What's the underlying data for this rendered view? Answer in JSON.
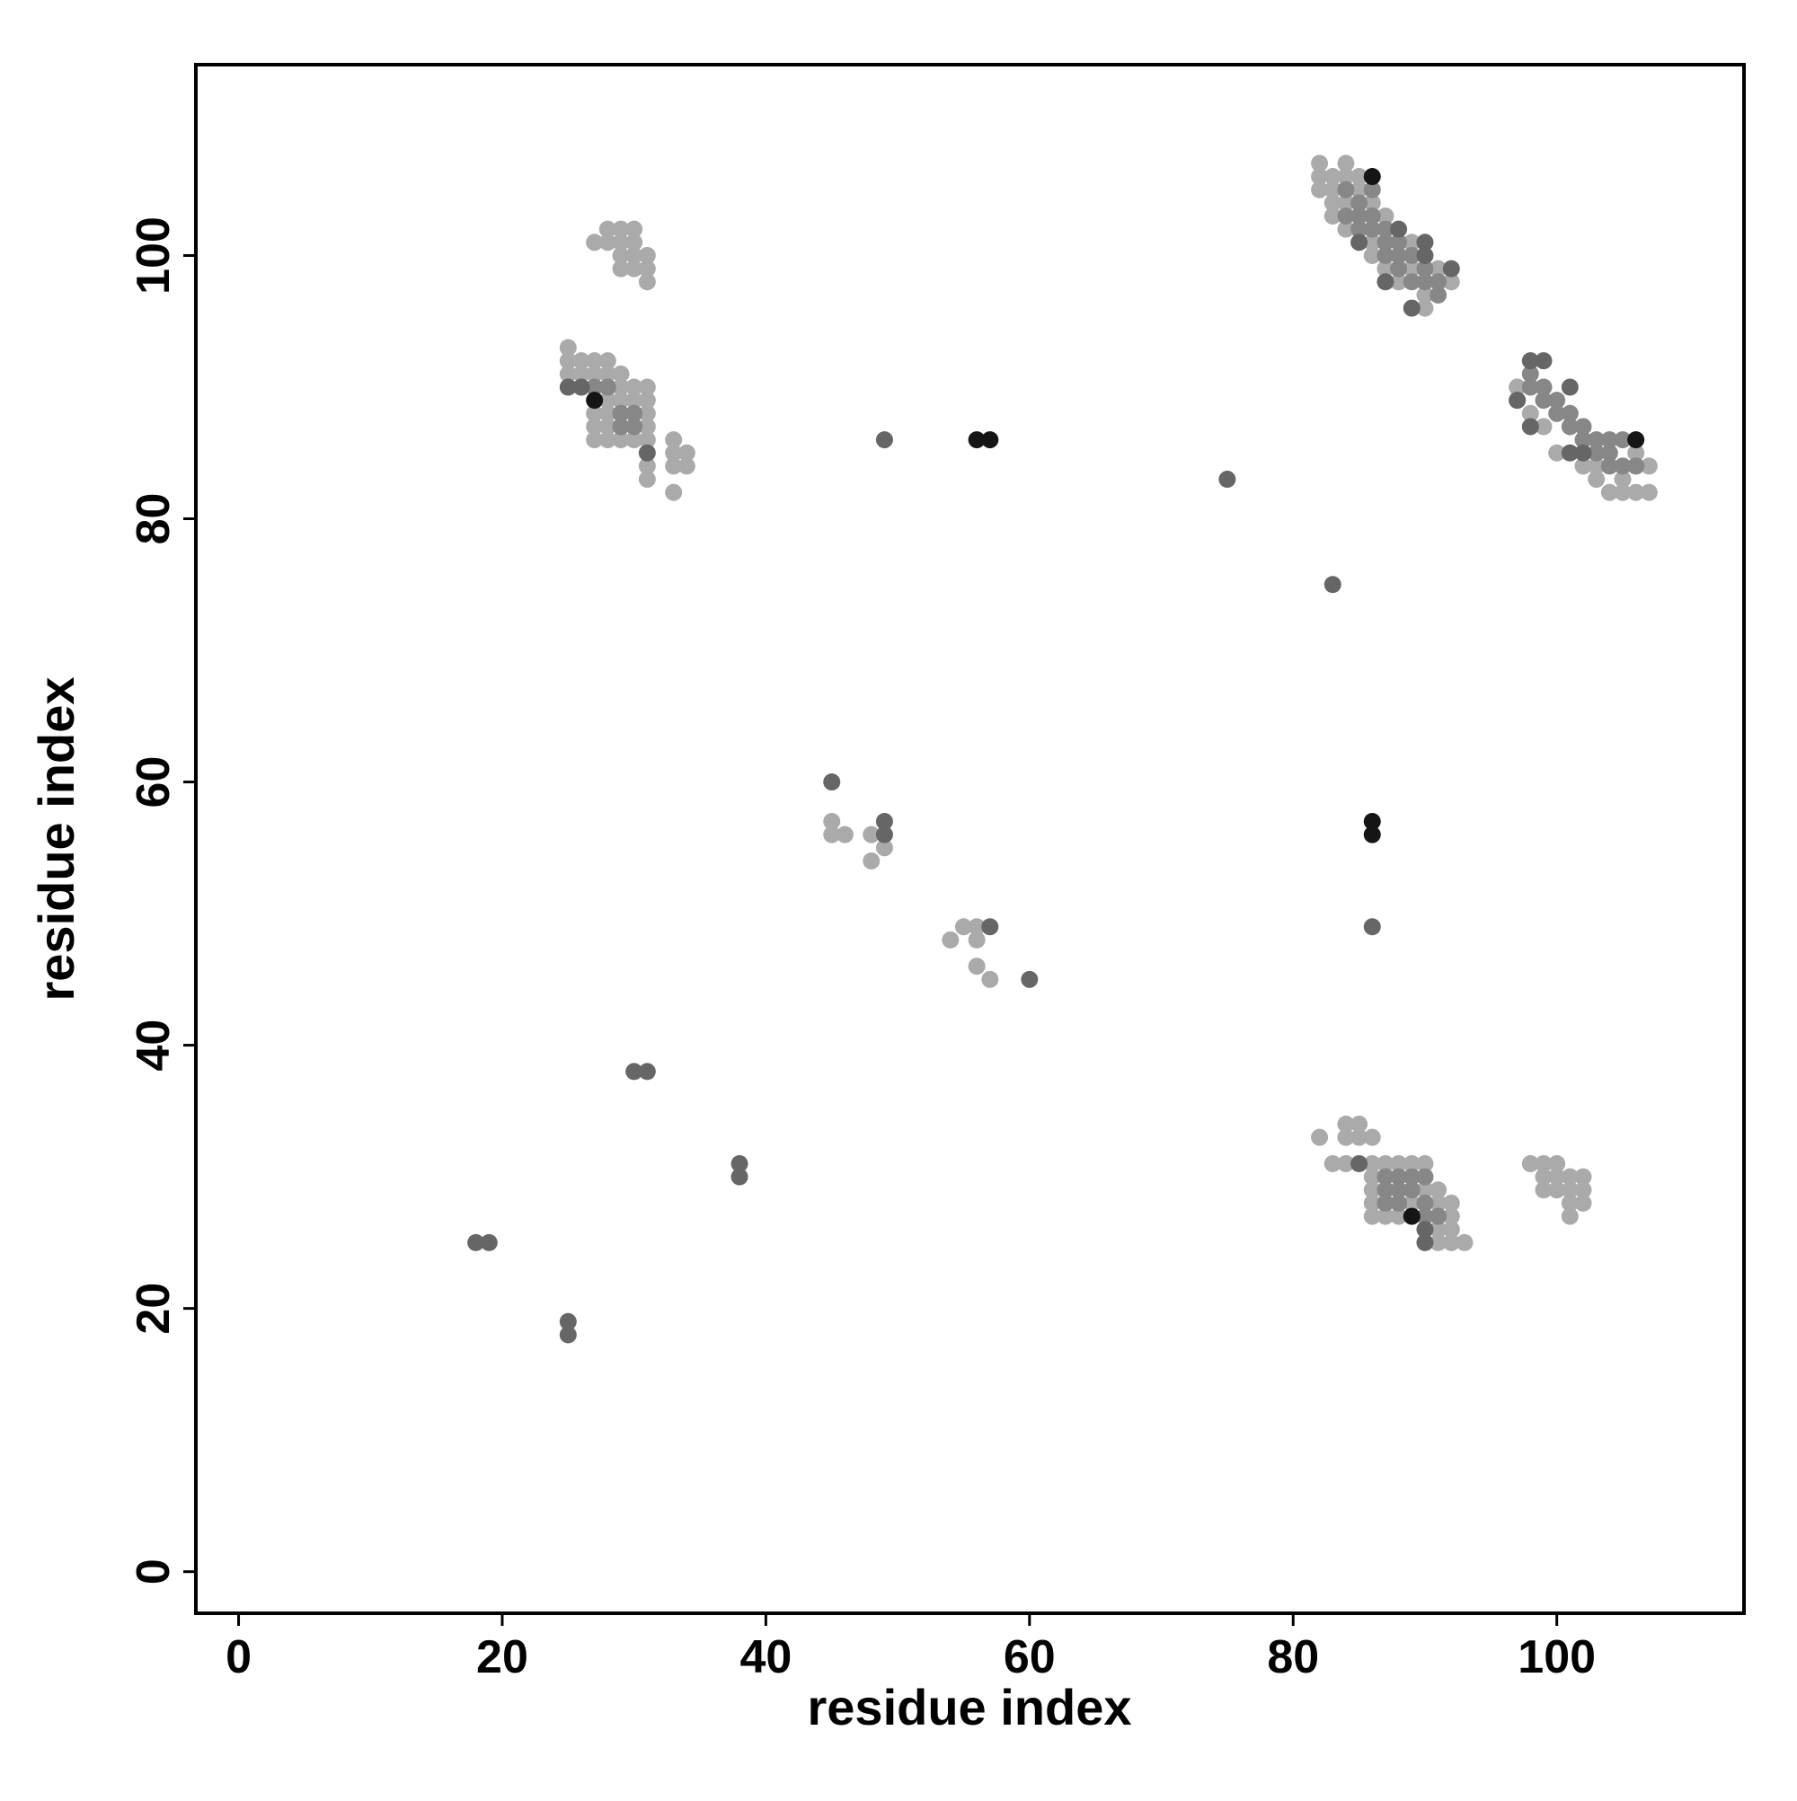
{
  "chart_data": {
    "type": "scatter",
    "xlabel": "residue index",
    "ylabel": "residue index",
    "xlim": [
      -3.24,
      114.2
    ],
    "ylim": [
      -3.16,
      114.5
    ],
    "xticks": [
      0,
      20,
      40,
      60,
      80,
      100
    ],
    "yticks": [
      0,
      20,
      40,
      60,
      80,
      100
    ],
    "series": [
      {
        "color": "#aaaaaa",
        "x": [
          45,
          45,
          46,
          48,
          48,
          49,
          54,
          55,
          56,
          56,
          56,
          57,
          27,
          28,
          28,
          29,
          29,
          30,
          30,
          29,
          30,
          31,
          29,
          30,
          31,
          31,
          25,
          25,
          25,
          26,
          27,
          28,
          26,
          27,
          28,
          29,
          29,
          30,
          31,
          27,
          27,
          27,
          28,
          29,
          30,
          31,
          28,
          31,
          31,
          31,
          28,
          29,
          30,
          28,
          33,
          33,
          34,
          33,
          34,
          31,
          31,
          33,
          82,
          82,
          82,
          83,
          83,
          83,
          83,
          84,
          84,
          84,
          84,
          85,
          85,
          86,
          86,
          86,
          87,
          87,
          88,
          89,
          89,
          90,
          90,
          91,
          92,
          97,
          98,
          99,
          100,
          102,
          103,
          104,
          105,
          106,
          107,
          107,
          105,
          106,
          103,
          82,
          84,
          84,
          85,
          85,
          86,
          83,
          84,
          86,
          86,
          86,
          86,
          86,
          87,
          88,
          89,
          90,
          91,
          91,
          92,
          92,
          92,
          92,
          93,
          91,
          91,
          90,
          89,
          88,
          87,
          98,
          99,
          100,
          99,
          100,
          101,
          102,
          99,
          100,
          101,
          102,
          101,
          102,
          101
        ],
        "values": [
          57,
          56,
          56,
          56,
          54,
          55,
          48,
          49,
          49,
          48,
          46,
          45,
          101,
          102,
          101,
          102,
          101,
          102,
          101,
          100,
          100,
          100,
          99,
          99,
          99,
          98,
          93,
          92,
          91,
          92,
          92,
          92,
          91,
          91,
          91,
          91,
          90,
          90,
          90,
          88,
          87,
          86,
          86,
          86,
          86,
          86,
          87,
          87,
          88,
          89,
          89,
          89,
          89,
          88,
          86,
          85,
          85,
          84,
          84,
          84,
          83,
          82,
          107,
          106,
          105,
          106,
          105,
          104,
          103,
          107,
          106,
          104,
          102,
          106,
          105,
          104,
          101,
          100,
          103,
          99,
          98,
          101,
          99,
          97,
          96,
          99,
          98,
          90,
          88,
          87,
          85,
          84,
          84,
          82,
          82,
          82,
          84,
          82,
          83,
          85,
          83,
          33,
          34,
          33,
          34,
          33,
          33,
          31,
          31,
          31,
          30,
          29,
          28,
          27,
          27,
          27,
          28,
          29,
          29,
          28,
          28,
          27,
          26,
          25,
          25,
          25,
          26,
          31,
          31,
          31,
          31,
          31,
          31,
          31,
          30,
          30,
          30,
          30,
          29,
          29,
          29,
          29,
          28,
          28,
          27
        ]
      },
      {
        "color": "#878787",
        "x": [
          29,
          30,
          29,
          30,
          26,
          27,
          28,
          84,
          84,
          85,
          85,
          85,
          86,
          86,
          87,
          87,
          87,
          88,
          88,
          88,
          89,
          89,
          90,
          90,
          91,
          91,
          86,
          98,
          99,
          99,
          100,
          100,
          101,
          101,
          102,
          102,
          103,
          103,
          104,
          104,
          105,
          105,
          106,
          104,
          97,
          98,
          87,
          88,
          89,
          90,
          87,
          88,
          89,
          87,
          88,
          90,
          91,
          90
        ],
        "values": [
          88,
          88,
          87,
          87,
          90,
          90,
          90,
          105,
          103,
          104,
          103,
          102,
          103,
          102,
          102,
          101,
          100,
          101,
          100,
          99,
          100,
          98,
          99,
          98,
          98,
          97,
          105,
          91,
          90,
          89,
          89,
          88,
          88,
          87,
          87,
          86,
          86,
          85,
          85,
          84,
          84,
          86,
          84,
          86,
          89,
          90,
          30,
          30,
          30,
          30,
          29,
          29,
          29,
          28,
          28,
          28,
          27,
          27
        ]
      },
      {
        "color": "#666666",
        "x": [
          49,
          75,
          83,
          86,
          45,
          49,
          49,
          57,
          60,
          30,
          31,
          38,
          38,
          18,
          19,
          25,
          25,
          25,
          26,
          31,
          85,
          87,
          89,
          90,
          92,
          90,
          88,
          98,
          99,
          101,
          98,
          101,
          102,
          97,
          85,
          90,
          90
        ],
        "values": [
          86,
          83,
          75,
          49,
          60,
          57,
          56,
          49,
          45,
          38,
          38,
          31,
          30,
          25,
          25,
          19,
          18,
          90,
          90,
          85,
          101,
          98,
          96,
          101,
          99,
          100,
          102,
          92,
          92,
          90,
          87,
          85,
          85,
          89,
          31,
          26,
          25
        ]
      },
      {
        "color": "#151515",
        "x": [
          56,
          57,
          86,
          86,
          27,
          86,
          106,
          89
        ],
        "values": [
          86,
          86,
          57,
          56,
          89,
          106,
          86,
          27
        ]
      }
    ]
  }
}
